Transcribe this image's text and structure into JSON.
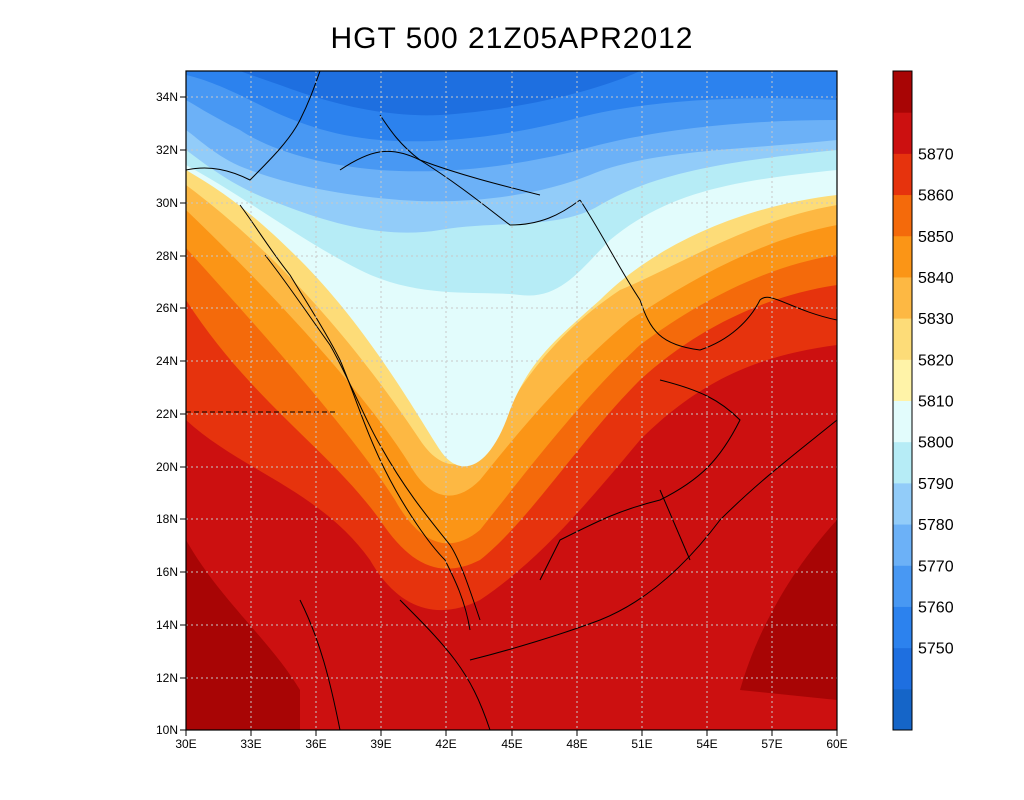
{
  "title": "HGT 500 21Z05APR2012",
  "lat_ticks": [
    "34N",
    "32N",
    "30N",
    "28N",
    "26N",
    "24N",
    "22N",
    "20N",
    "18N",
    "16N",
    "14N",
    "12N",
    "10N"
  ],
  "lon_ticks": [
    "30E",
    "33E",
    "36E",
    "39E",
    "42E",
    "45E",
    "48E",
    "51E",
    "54E",
    "57E",
    "60E"
  ],
  "colorbar": {
    "colors": [
      "#1565c8",
      "#1e6fe0",
      "#2c82ee",
      "#4898f3",
      "#6cb1f7",
      "#92ccf9",
      "#b6ecf6",
      "#e2fcfc",
      "#fff3a8",
      "#fddc78",
      "#fdb843",
      "#fb9516",
      "#f46a0b",
      "#e6330d",
      "#cc1010",
      "#a80505"
    ],
    "labels": [
      "5750",
      "5760",
      "5770",
      "5780",
      "5790",
      "5800",
      "5810",
      "5820",
      "5830",
      "5840",
      "5850",
      "5860",
      "5870"
    ]
  }
}
